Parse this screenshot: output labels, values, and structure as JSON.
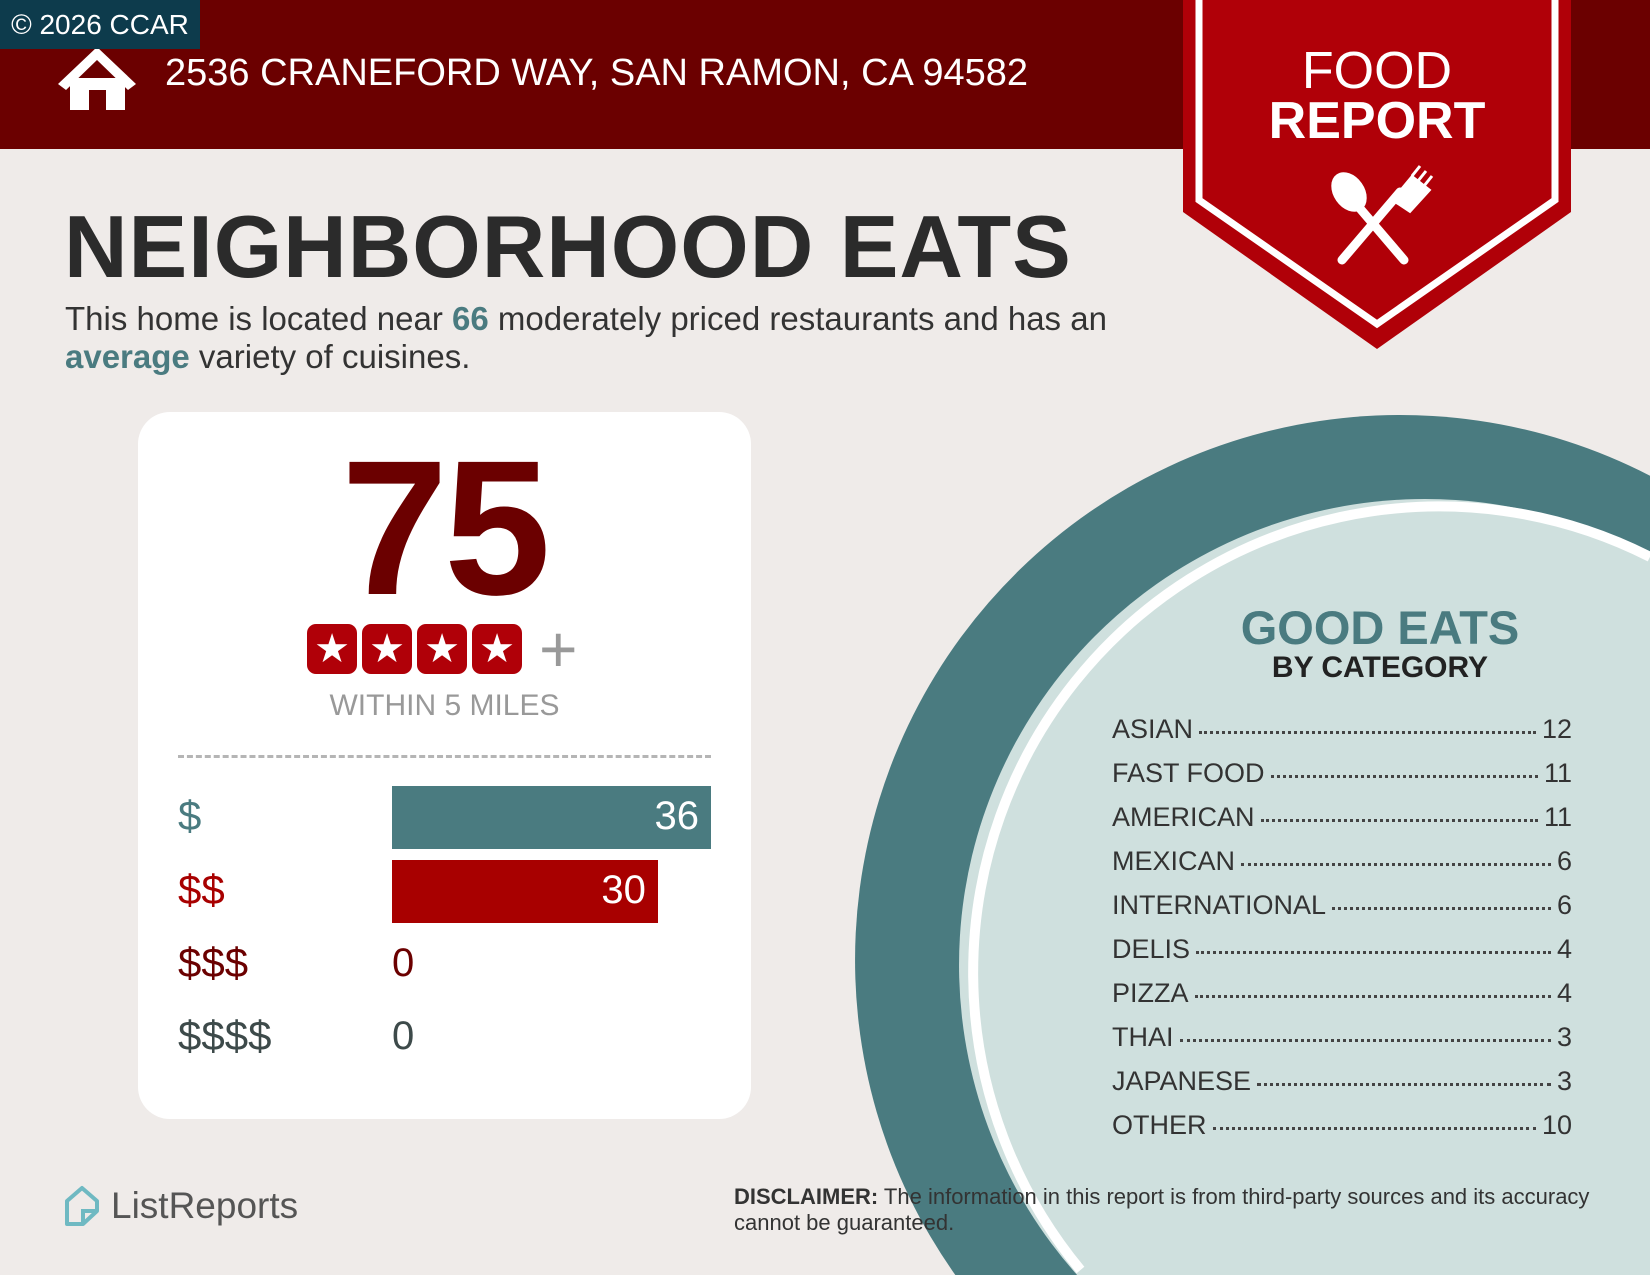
{
  "badge": "© 2026 CCAR",
  "header": {
    "address": "2536 CRANEFORD WAY, SAN RAMON, CA 94582",
    "icon": "house-icon"
  },
  "banner": {
    "line1": "FOOD",
    "line2": "REPORT",
    "icon": "spoon-fork-icon"
  },
  "title": "NEIGHBORHOOD EATS",
  "subtitle": {
    "part1": "This home is located near ",
    "count": "66",
    "part2": " moderately priced restaurants and has an ",
    "variety": "average",
    "part3": " variety of cuisines."
  },
  "card": {
    "score": "75",
    "stars": 4,
    "star_plus": "+",
    "within": "WITHIN 5 MILES",
    "price_rows": [
      {
        "label": "$",
        "value": 36,
        "color": "#4a7b80"
      },
      {
        "label": "$$",
        "value": 30,
        "color": "#a80000"
      },
      {
        "label": "$$$",
        "value": 0,
        "color": "#6b0000"
      },
      {
        "label": "$$$$",
        "value": 0,
        "color": "#3d4a4a"
      }
    ]
  },
  "good_eats": {
    "title": "GOOD EATS",
    "subtitle": "BY CATEGORY",
    "categories": [
      {
        "name": "ASIAN",
        "count": "12"
      },
      {
        "name": "FAST FOOD",
        "count": "11"
      },
      {
        "name": "AMERICAN",
        "count": "11"
      },
      {
        "name": "MEXICAN",
        "count": "6"
      },
      {
        "name": "INTERNATIONAL",
        "count": "6"
      },
      {
        "name": "DELIS",
        "count": "4"
      },
      {
        "name": "PIZZA",
        "count": "4"
      },
      {
        "name": "THAI",
        "count": "3"
      },
      {
        "name": "JAPANESE",
        "count": "3"
      },
      {
        "name": "OTHER",
        "count": "10"
      }
    ]
  },
  "footer": {
    "logo": "ListReports",
    "disclaimer_label": "DISCLAIMER:",
    "disclaimer_text": " The information in this report is from third-party sources and its accuracy cannot be guaranteed."
  },
  "colors": {
    "header": "#6b0000",
    "banner": "#b00008",
    "teal": "#4a7b80",
    "plate": "#cfe0de",
    "background": "#efebe9"
  }
}
